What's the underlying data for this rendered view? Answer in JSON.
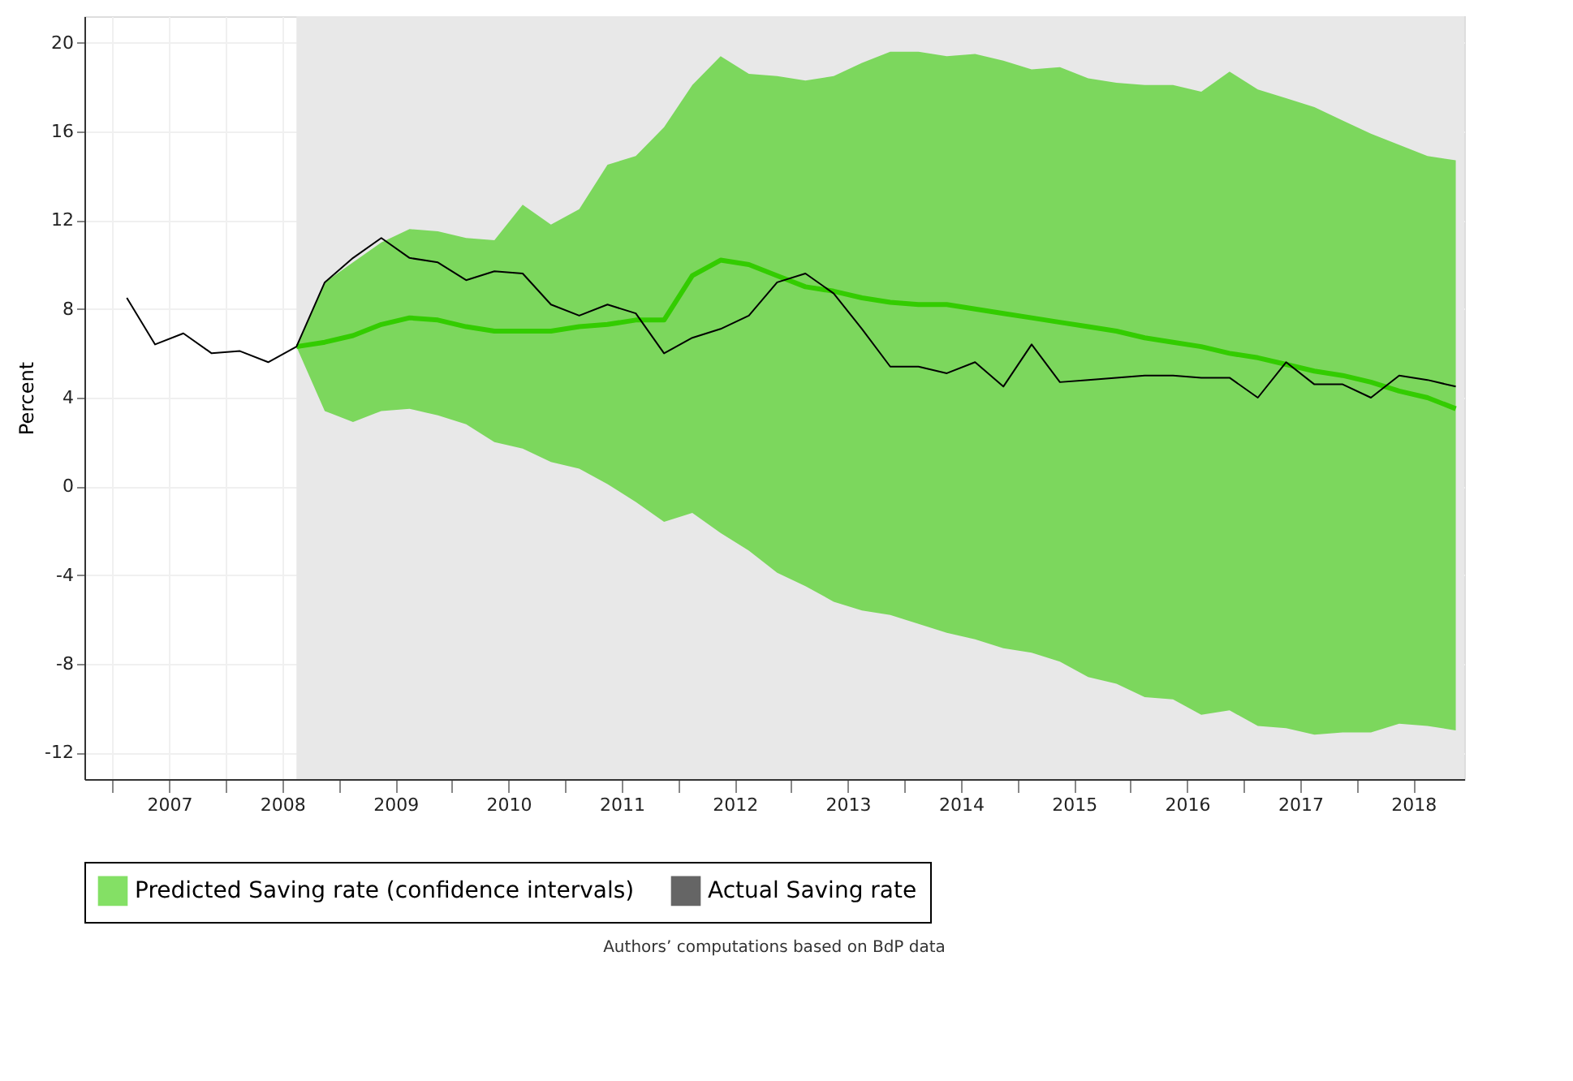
{
  "chart_data": {
    "type": "line",
    "annotations": [
      "Authors’ computations based on BdP data"
    ],
    "ylabel": "Percent",
    "xlim": [
      2006.75,
      2018.95
    ],
    "xticks": [
      {
        "value": 2007,
        "label": null
      },
      {
        "value": 2007.5,
        "label": "2007"
      },
      {
        "value": 2008,
        "label": null
      },
      {
        "value": 2008.5,
        "label": "2008"
      },
      {
        "value": 2009,
        "label": null
      },
      {
        "value": 2009.5,
        "label": "2009"
      },
      {
        "value": 2010,
        "label": null
      },
      {
        "value": 2010.5,
        "label": "2010"
      },
      {
        "value": 2011,
        "label": null
      },
      {
        "value": 2011.5,
        "label": "2011"
      },
      {
        "value": 2012,
        "label": null
      },
      {
        "value": 2012.5,
        "label": "2012"
      },
      {
        "value": 2013,
        "label": null
      },
      {
        "value": 2013.5,
        "label": "2013"
      },
      {
        "value": 2014,
        "label": null
      },
      {
        "value": 2014.5,
        "label": "2014"
      },
      {
        "value": 2015,
        "label": null
      },
      {
        "value": 2015.5,
        "label": "2015"
      },
      {
        "value": 2016,
        "label": null
      },
      {
        "value": 2016.5,
        "label": "2016"
      },
      {
        "value": 2017,
        "label": null
      },
      {
        "value": 2017.5,
        "label": "2017"
      },
      {
        "value": 2018,
        "label": null
      },
      {
        "value": 2018.5,
        "label": "2018"
      }
    ],
    "ylim": [
      -13.2,
      21.2
    ],
    "yticks": [
      -12,
      -8,
      -4,
      0,
      4,
      8,
      12,
      16,
      20
    ],
    "grid": true,
    "legend": "bottom",
    "bands": [
      {
        "axis": "x",
        "from": 2008.625,
        "to": 2018.95,
        "color": "#e8e8e8"
      }
    ],
    "series": [
      {
        "name": "Predicted Saving rate (confidence intervals)",
        "color": "#33cc00",
        "x": [
          2008.625,
          2008.875,
          2009.125,
          2009.375,
          2009.625,
          2009.875,
          2010.125,
          2010.375,
          2010.625,
          2010.875,
          2011.125,
          2011.375,
          2011.625,
          2011.875,
          2012.125,
          2012.375,
          2012.625,
          2012.875,
          2013.125,
          2013.375,
          2013.625,
          2013.875,
          2014.125,
          2014.375,
          2014.625,
          2014.875,
          2015.125,
          2015.375,
          2015.625,
          2015.875,
          2016.125,
          2016.375,
          2016.625,
          2016.875,
          2017.125,
          2017.375,
          2017.625,
          2017.875,
          2018.125,
          2018.375,
          2018.625,
          2018.875
        ],
        "values": [
          6.3,
          6.5,
          6.8,
          7.3,
          7.6,
          7.5,
          7.2,
          7.0,
          7.0,
          7.0,
          7.2,
          7.3,
          7.5,
          7.5,
          9.5,
          10.2,
          10.0,
          9.5,
          9.0,
          8.8,
          8.5,
          8.3,
          8.2,
          8.2,
          8.0,
          7.8,
          7.6,
          7.4,
          7.2,
          7.0,
          6.7,
          6.5,
          6.3,
          6.0,
          5.8,
          5.5,
          5.2,
          5.0,
          4.7,
          4.3,
          4.0,
          3.5
        ],
        "lower": [
          6.3,
          3.4,
          2.9,
          3.4,
          3.5,
          3.2,
          2.8,
          2.0,
          1.7,
          1.1,
          0.8,
          0.1,
          -0.7,
          -1.6,
          -1.2,
          -2.1,
          -2.9,
          -3.9,
          -4.5,
          -5.2,
          -5.6,
          -5.8,
          -6.2,
          -6.6,
          -6.9,
          -7.3,
          -7.5,
          -7.9,
          -8.6,
          -8.9,
          -9.5,
          -9.6,
          -10.3,
          -10.1,
          -10.8,
          -10.9,
          -11.2,
          -11.1,
          -11.1,
          -10.7,
          -10.8,
          -11.0
        ],
        "upper": [
          6.3,
          9.2,
          10.1,
          11.0,
          11.6,
          11.5,
          11.2,
          11.1,
          12.7,
          11.8,
          12.5,
          14.5,
          14.9,
          16.2,
          18.1,
          19.4,
          18.6,
          18.5,
          18.3,
          18.5,
          19.1,
          19.6,
          19.6,
          19.4,
          19.5,
          19.2,
          18.8,
          18.9,
          18.4,
          18.2,
          18.1,
          18.1,
          17.8,
          18.7,
          17.9,
          17.5,
          17.1,
          16.5,
          15.9,
          15.4,
          14.9,
          14.7
        ]
      },
      {
        "name": "Actual Saving rate",
        "type": "line",
        "color": "#000000",
        "x": [
          2007.125,
          2007.375,
          2007.625,
          2007.875,
          2008.125,
          2008.375,
          2008.625,
          2008.875,
          2009.125,
          2009.375,
          2009.625,
          2009.875,
          2010.125,
          2010.375,
          2010.625,
          2010.875,
          2011.125,
          2011.375,
          2011.625,
          2011.875,
          2012.125,
          2012.375,
          2012.625,
          2012.875,
          2013.125,
          2013.375,
          2013.625,
          2013.875,
          2014.125,
          2014.375,
          2014.625,
          2014.875,
          2015.125,
          2015.375,
          2015.625,
          2015.875,
          2016.125,
          2016.375,
          2016.625,
          2016.875,
          2017.125,
          2017.375,
          2017.625,
          2017.875,
          2018.125,
          2018.375,
          2018.625,
          2018.875
        ],
        "values": [
          8.5,
          6.4,
          6.9,
          6.0,
          6.1,
          5.6,
          6.3,
          9.2,
          10.3,
          11.2,
          10.3,
          10.1,
          9.3,
          9.7,
          9.6,
          8.2,
          7.7,
          8.2,
          7.8,
          6.0,
          6.7,
          7.1,
          7.7,
          9.2,
          9.6,
          8.7,
          7.1,
          5.4,
          5.4,
          5.1,
          5.6,
          4.5,
          6.4,
          4.7,
          4.8,
          4.9,
          5.0,
          5.0,
          4.9,
          4.9,
          4.0,
          5.6,
          4.6,
          4.6,
          4.0,
          5.0,
          4.8,
          4.5
        ]
      }
    ]
  }
}
